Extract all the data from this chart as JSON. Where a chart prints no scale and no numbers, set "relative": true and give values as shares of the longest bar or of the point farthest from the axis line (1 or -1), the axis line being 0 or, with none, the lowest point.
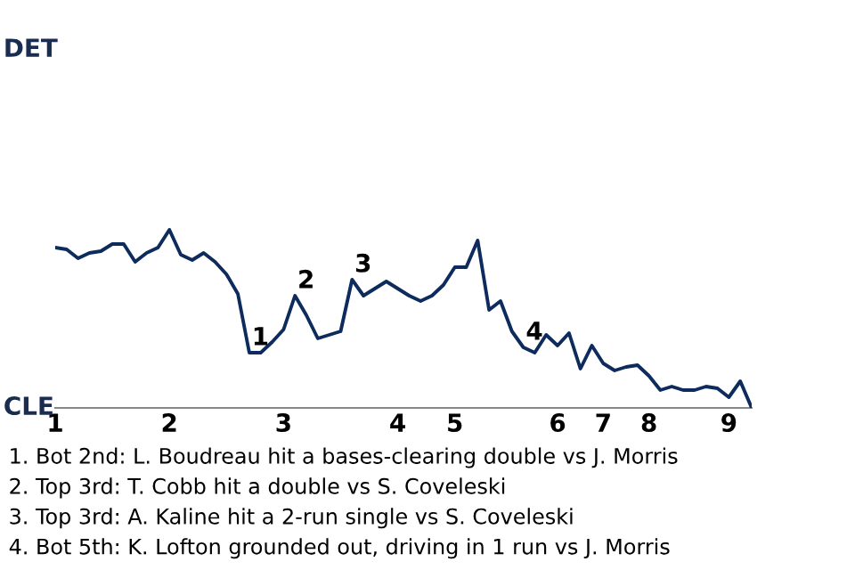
{
  "chart_data": {
    "type": "line",
    "relative": true,
    "categories": [
      "1",
      null,
      null,
      null,
      null,
      null,
      null,
      null,
      null,
      null,
      "2",
      null,
      null,
      null,
      null,
      null,
      null,
      null,
      null,
      null,
      "3",
      null,
      null,
      null,
      null,
      null,
      null,
      null,
      null,
      null,
      "4",
      null,
      null,
      null,
      null,
      "5",
      null,
      null,
      null,
      null,
      null,
      null,
      null,
      null,
      "6",
      null,
      null,
      null,
      "7",
      null,
      null,
      null,
      "8",
      null,
      null,
      null,
      null,
      null,
      null,
      "9",
      null,
      null
    ],
    "series": [
      {
        "color": "#0d2b5c",
        "values": [
          0.9,
          0.89,
          0.84,
          0.87,
          0.88,
          0.92,
          0.92,
          0.82,
          0.87,
          0.9,
          1,
          0.86,
          0.83,
          0.87,
          0.82,
          0.75,
          0.64,
          0.31,
          0.31,
          0.37,
          0.44,
          0.63,
          0.52,
          0.39,
          0.41,
          0.43,
          0.72,
          0.63,
          0.67,
          0.71,
          0.67,
          0.63,
          0.6,
          0.63,
          0.69,
          0.79,
          0.79,
          0.94,
          0.55,
          0.6,
          0.43,
          0.34,
          0.31,
          0.41,
          0.35,
          0.42,
          0.22,
          0.35,
          0.25,
          0.21,
          0.23,
          0.24,
          0.18,
          0.1,
          0.12,
          0.1,
          0.1,
          0.12,
          0.11,
          0.06,
          0.15,
          0
        ],
        "name": null
      }
    ],
    "legend": false,
    "line_style": "solid",
    "annotations": [
      {
        "text": "1",
        "y": 0.31
      },
      {
        "text": "2",
        "y": 0.63
      },
      {
        "text": "3",
        "y": 0.72
      },
      {
        "text": "4",
        "y": 0.34
      },
      "DET",
      "CLE",
      "1. Bot 2nd: L. Boudreau hit a bases-clearing double vs J. Morris",
      "2. Top 3rd: T. Cobb hit a double vs S. Coveleski",
      "3. Top 3rd: A. Kaline hit a 2-run single vs S. Coveleski",
      "4. Bot 5th: K. Lofton grounded out, driving in 1 run vs J. Morris"
    ]
  }
}
